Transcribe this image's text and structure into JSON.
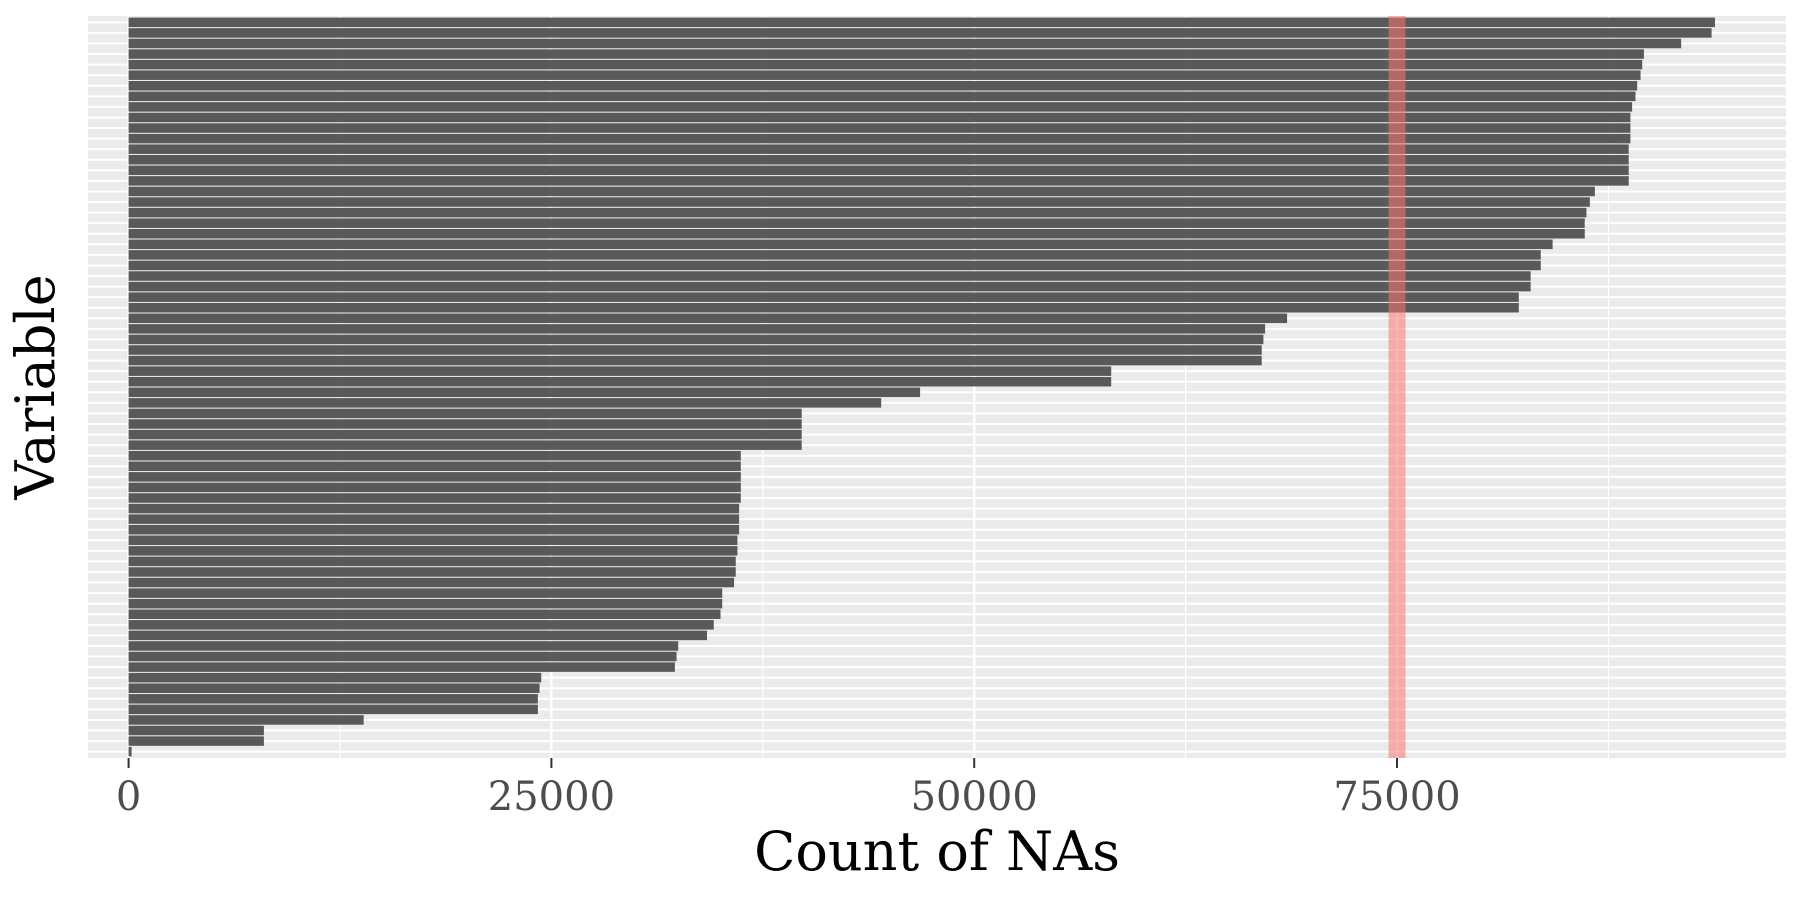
{
  "chart_data": {
    "type": "bar",
    "orientation": "horizontal",
    "title": "",
    "xlabel": "Count of NAs",
    "ylabel": "Variable",
    "xlim": [
      -2400,
      98000
    ],
    "xticks": [
      0,
      25000,
      50000,
      75000
    ],
    "xtick_labels": [
      "0",
      "25000",
      "50000",
      "75000"
    ],
    "y_tick_labels_shown": false,
    "grid": true,
    "legend": "none",
    "reference_line": {
      "x": 75000
    },
    "colors": {
      "bar": "#595959",
      "panel_background": "#ebebeb",
      "grid_line": "#ffffff",
      "reference_line": "#f8766d"
    },
    "values": [
      0,
      8000,
      8000,
      13900,
      24200,
      24200,
      24300,
      24400,
      32300,
      32400,
      32500,
      34200,
      34600,
      35000,
      35100,
      35100,
      35800,
      35900,
      35900,
      36000,
      36000,
      36100,
      36100,
      36100,
      36200,
      36200,
      36200,
      36200,
      36200,
      39800,
      39800,
      39800,
      39800,
      44500,
      46800,
      58100,
      58100,
      67000,
      67000,
      67100,
      67200,
      68500,
      82200,
      82200,
      82900,
      82900,
      83500,
      83500,
      84200,
      86100,
      86100,
      86200,
      86400,
      86700,
      88700,
      88700,
      88700,
      88700,
      88800,
      88800,
      88800,
      88900,
      89100,
      89200,
      89400,
      89500,
      89600,
      91800,
      93600,
      93800
    ]
  }
}
